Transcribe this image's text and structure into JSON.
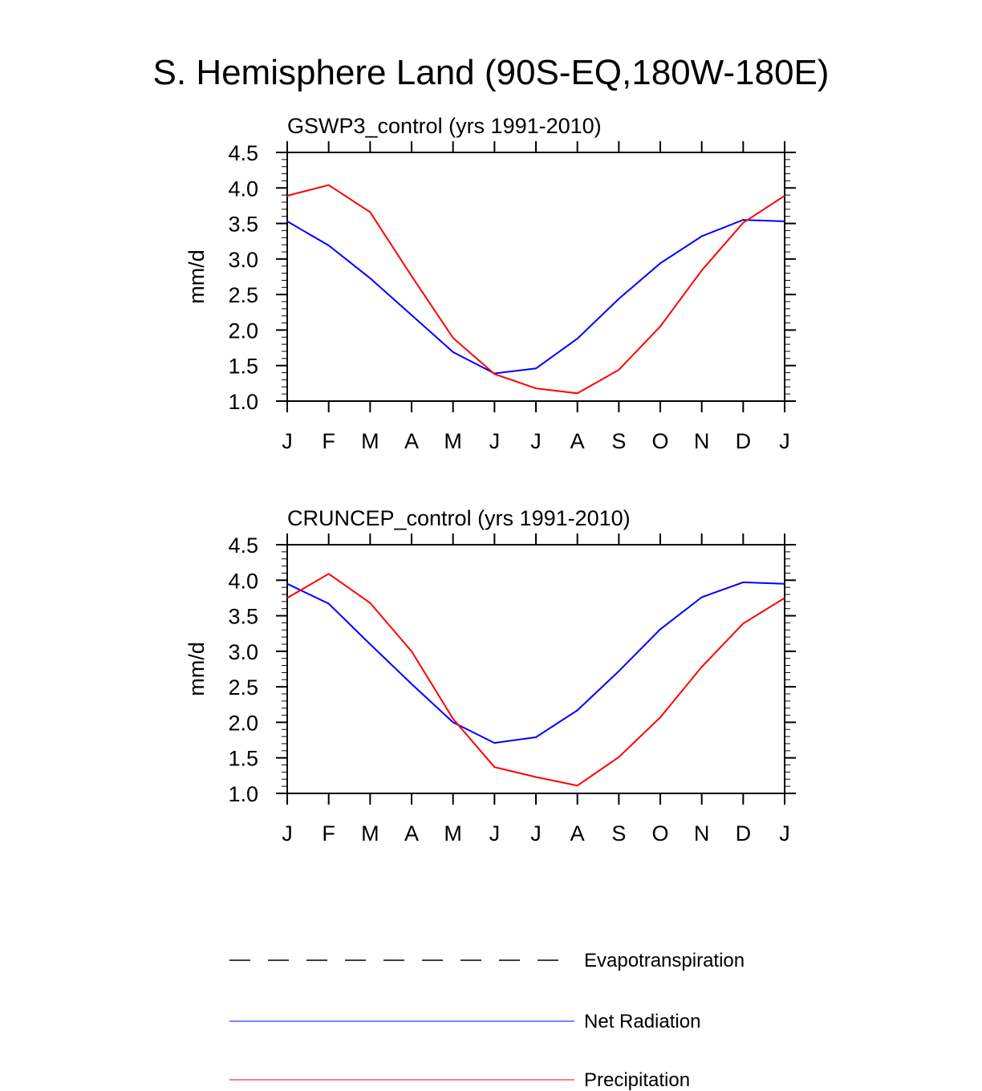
{
  "title": "S. Hemisphere Land (90S-EQ,180W-180E)",
  "colors": {
    "net_radiation": "#0000ff",
    "precipitation": "#ff0000",
    "evapotranspiration": "#000000",
    "axis": "#000000"
  },
  "chart_data": [
    {
      "type": "line",
      "title": "GSWP3_control (yrs 1991-2010)",
      "ylabel": "mm/d",
      "xlabel": "",
      "categories": [
        "J",
        "F",
        "M",
        "A",
        "M",
        "J",
        "J",
        "A",
        "S",
        "O",
        "N",
        "D",
        "J"
      ],
      "ylim": [
        1.0,
        4.5
      ],
      "yticks": [
        "1.0",
        "1.5",
        "2.0",
        "2.5",
        "3.0",
        "3.5",
        "4.0",
        "4.5"
      ],
      "series": [
        {
          "name": "Net Radiation",
          "color": "#0000ff",
          "values": [
            3.53,
            3.19,
            2.73,
            2.21,
            1.69,
            1.39,
            1.46,
            1.88,
            2.44,
            2.94,
            3.32,
            3.55,
            3.53
          ]
        },
        {
          "name": "Precipitation",
          "color": "#ff0000",
          "values": [
            3.89,
            4.04,
            3.66,
            2.76,
            1.89,
            1.38,
            1.18,
            1.11,
            1.44,
            2.05,
            2.84,
            3.51,
            3.89
          ]
        }
      ]
    },
    {
      "type": "line",
      "title": "CRUNCEP_control (yrs 1991-2010)",
      "ylabel": "mm/d",
      "xlabel": "",
      "categories": [
        "J",
        "F",
        "M",
        "A",
        "M",
        "J",
        "J",
        "A",
        "S",
        "O",
        "N",
        "D",
        "J"
      ],
      "ylim": [
        1.0,
        4.5
      ],
      "yticks": [
        "1.0",
        "1.5",
        "2.0",
        "2.5",
        "3.0",
        "3.5",
        "4.0",
        "4.5"
      ],
      "series": [
        {
          "name": "Net Radiation",
          "color": "#0000ff",
          "values": [
            3.95,
            3.67,
            3.1,
            2.54,
            2.0,
            1.71,
            1.79,
            2.17,
            2.72,
            3.31,
            3.76,
            3.97,
            3.95
          ]
        },
        {
          "name": "Precipitation",
          "color": "#ff0000",
          "values": [
            3.75,
            4.09,
            3.68,
            3.0,
            2.05,
            1.37,
            1.23,
            1.11,
            1.51,
            2.07,
            2.78,
            3.39,
            3.75
          ]
        }
      ]
    }
  ],
  "legend": [
    {
      "label": "Evapotranspiration",
      "color": "#000000",
      "style": "dashed"
    },
    {
      "label": "Net Radiation",
      "color": "#0000ff",
      "style": "solid"
    },
    {
      "label": "Precipitation",
      "color": "#ff0000",
      "style": "solid"
    }
  ]
}
